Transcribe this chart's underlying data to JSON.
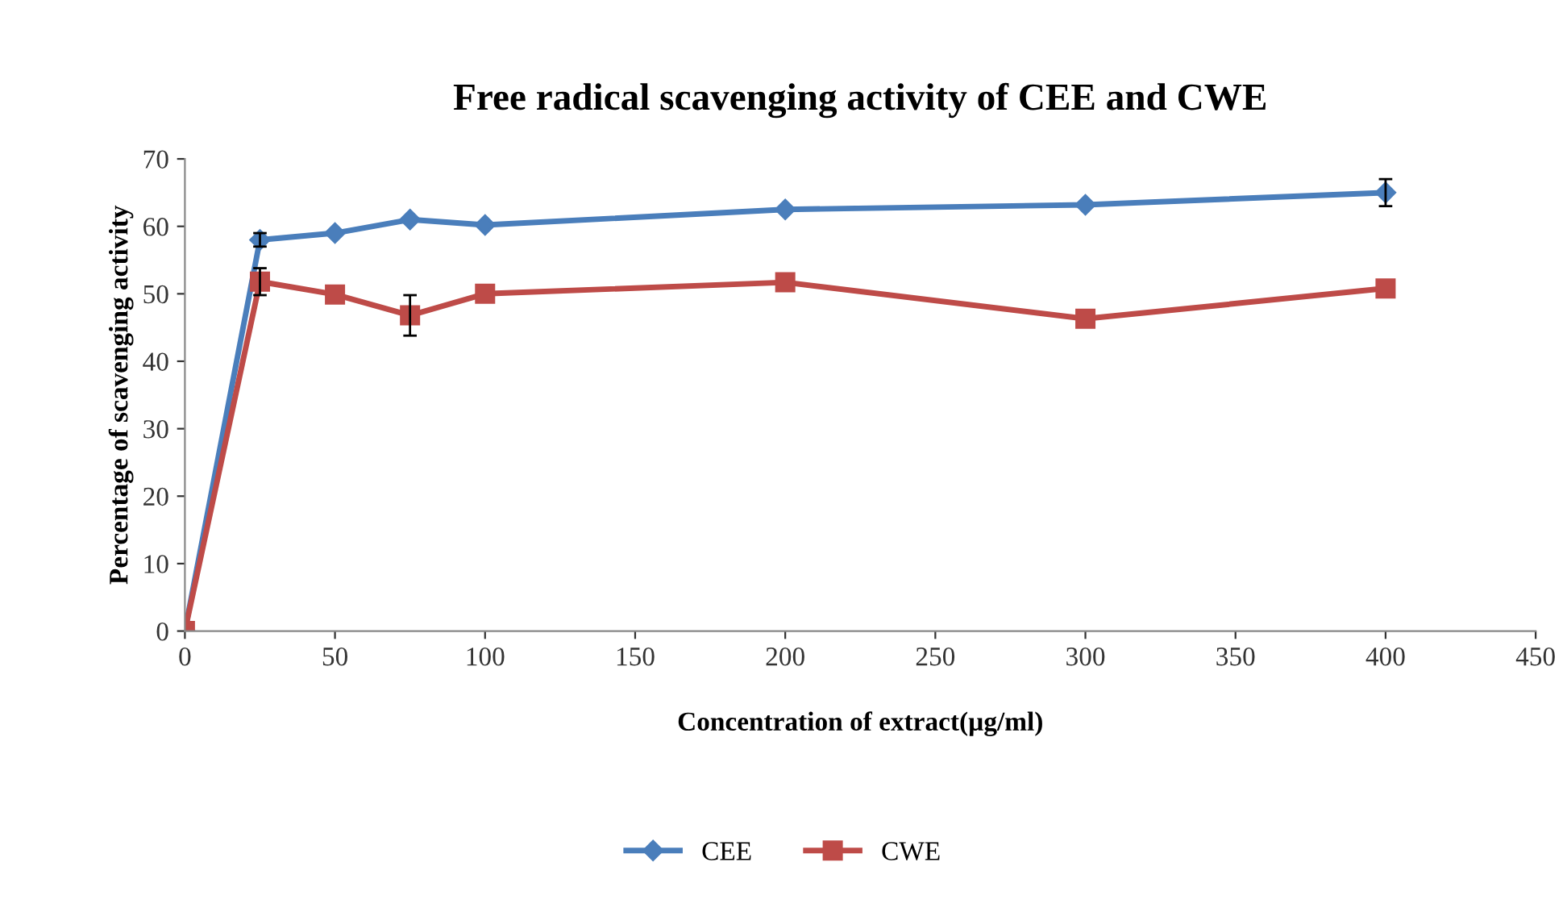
{
  "chart_data": {
    "type": "line",
    "title": "Free radical scavenging activity of CEE and CWE",
    "xlabel": "Concentration of extract(µg/ml)",
    "ylabel": "Percentage of scavenging activity",
    "x": [
      0,
      25,
      50,
      75,
      100,
      200,
      300,
      400
    ],
    "series": [
      {
        "name": "CEE",
        "color": "#4a7ebb",
        "marker": "diamond",
        "values": [
          0,
          58,
          59,
          61,
          60.2,
          62.5,
          63.2,
          65
        ],
        "errors": [
          null,
          1,
          null,
          null,
          null,
          null,
          null,
          2
        ]
      },
      {
        "name": "CWE",
        "color": "#be4b48",
        "marker": "square",
        "values": [
          0,
          51.8,
          49.9,
          46.8,
          50,
          51.7,
          46.3,
          50.8
        ],
        "errors": [
          null,
          2,
          null,
          3,
          null,
          null,
          null,
          null
        ]
      }
    ],
    "xlim": [
      0,
      450
    ],
    "xticks": [
      0,
      50,
      100,
      150,
      200,
      250,
      300,
      350,
      400,
      450
    ],
    "ylim": [
      0,
      70
    ],
    "yticks": [
      0,
      10,
      20,
      30,
      40,
      50,
      60,
      70
    ],
    "grid": false,
    "legend": "bottom",
    "line_style": "solid"
  }
}
